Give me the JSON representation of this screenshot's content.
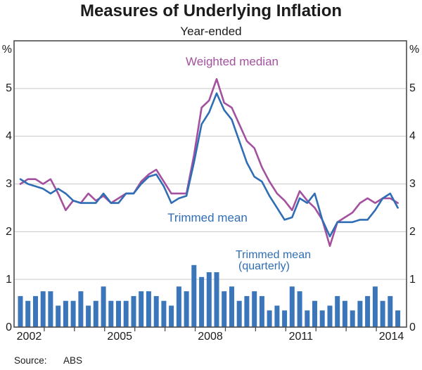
{
  "title": "Measures of Underlying Inflation",
  "subtitle": "Year-ended",
  "source": {
    "label": "Source:",
    "value": "ABS"
  },
  "y_axis": {
    "unit_left": "%",
    "unit_right": "%",
    "tick_labels": [
      "0",
      "1",
      "2",
      "3",
      "4",
      "5"
    ],
    "max": 6
  },
  "x_axis": {
    "tick_labels": [
      "2002",
      "2005",
      "2008",
      "2011",
      "2014"
    ],
    "start_year": 2002,
    "end_year": 2015
  },
  "annotations": {
    "weighted_median": "Weighted median",
    "trimmed_mean": "Trimmed mean",
    "trimmed_mean_quarterly_line1": "Trimmed mean",
    "trimmed_mean_quarterly_line2": "(quarterly)"
  },
  "colors": {
    "weighted_median": "#A3519F",
    "trimmed_mean": "#2F6EB5",
    "bars": "#3B76BB",
    "grid": "#C9C9C9",
    "frame": "#4D4D4D",
    "text": "#1B1B1B"
  },
  "chart_data": {
    "type": "composite",
    "title": "Measures of Underlying Inflation",
    "subtitle": "Year-ended",
    "ylabel": "%",
    "ylim": [
      0,
      6
    ],
    "grid": true,
    "x_quarters": [
      "2002 Q1",
      "2002 Q2",
      "2002 Q3",
      "2002 Q4",
      "2003 Q1",
      "2003 Q2",
      "2003 Q3",
      "2003 Q4",
      "2004 Q1",
      "2004 Q2",
      "2004 Q3",
      "2004 Q4",
      "2005 Q1",
      "2005 Q2",
      "2005 Q3",
      "2005 Q4",
      "2006 Q1",
      "2006 Q2",
      "2006 Q3",
      "2006 Q4",
      "2007 Q1",
      "2007 Q2",
      "2007 Q3",
      "2007 Q4",
      "2008 Q1",
      "2008 Q2",
      "2008 Q3",
      "2008 Q4",
      "2009 Q1",
      "2009 Q2",
      "2009 Q3",
      "2009 Q4",
      "2010 Q1",
      "2010 Q2",
      "2010 Q3",
      "2010 Q4",
      "2011 Q1",
      "2011 Q2",
      "2011 Q3",
      "2011 Q4",
      "2012 Q1",
      "2012 Q2",
      "2012 Q3",
      "2012 Q4",
      "2013 Q1",
      "2013 Q2",
      "2013 Q3",
      "2013 Q4",
      "2014 Q1",
      "2014 Q2",
      "2014 Q3"
    ],
    "series": [
      {
        "name": "Weighted median",
        "type": "line",
        "unit": "% year-ended",
        "values": [
          3.0,
          3.1,
          3.1,
          3.0,
          3.1,
          2.8,
          2.45,
          2.65,
          2.6,
          2.8,
          2.65,
          2.75,
          2.6,
          2.7,
          2.8,
          2.8,
          3.05,
          3.2,
          3.3,
          3.05,
          2.8,
          2.8,
          2.8,
          3.6,
          4.6,
          4.75,
          5.2,
          4.7,
          4.6,
          4.25,
          3.9,
          3.75,
          3.35,
          3.05,
          2.8,
          2.65,
          2.45,
          2.85,
          2.65,
          2.5,
          2.25,
          1.7,
          2.2,
          2.3,
          2.4,
          2.6,
          2.7,
          2.6,
          2.7,
          2.7,
          2.6
        ]
      },
      {
        "name": "Trimmed mean",
        "type": "line",
        "unit": "% year-ended",
        "values": [
          3.1,
          3.0,
          2.95,
          2.9,
          2.8,
          2.9,
          2.8,
          2.65,
          2.6,
          2.6,
          2.6,
          2.8,
          2.6,
          2.6,
          2.8,
          2.8,
          3.0,
          3.15,
          3.2,
          2.95,
          2.6,
          2.7,
          2.75,
          3.45,
          4.25,
          4.5,
          4.9,
          4.55,
          4.35,
          3.9,
          3.45,
          3.15,
          3.05,
          2.75,
          2.5,
          2.25,
          2.3,
          2.7,
          2.6,
          2.8,
          2.25,
          1.9,
          2.2,
          2.2,
          2.2,
          2.25,
          2.25,
          2.45,
          2.7,
          2.8,
          2.5
        ]
      },
      {
        "name": "Trimmed mean (quarterly)",
        "type": "bar",
        "unit": "% quarterly",
        "values": [
          0.65,
          0.55,
          0.65,
          0.75,
          0.75,
          0.45,
          0.55,
          0.55,
          0.75,
          0.45,
          0.55,
          0.85,
          0.55,
          0.55,
          0.55,
          0.65,
          0.75,
          0.75,
          0.65,
          0.55,
          0.45,
          0.85,
          0.75,
          1.3,
          1.05,
          1.15,
          1.15,
          0.75,
          0.85,
          0.55,
          0.65,
          0.75,
          0.65,
          0.35,
          0.45,
          0.35,
          0.85,
          0.75,
          0.35,
          0.55,
          0.35,
          0.45,
          0.65,
          0.55,
          0.35,
          0.55,
          0.65,
          0.85,
          0.55,
          0.65,
          0.35
        ]
      }
    ]
  }
}
